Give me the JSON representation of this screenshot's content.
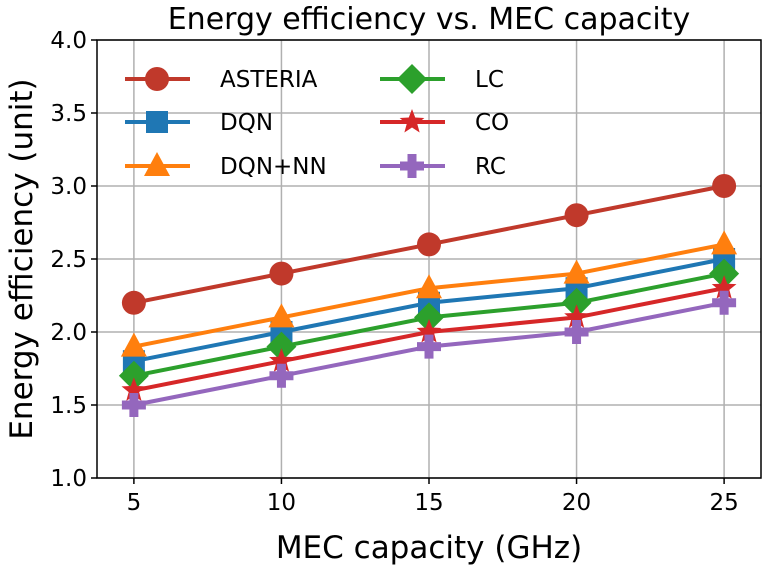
{
  "chart_data": {
    "type": "line",
    "title": "Energy efficiency vs. MEC capacity",
    "xlabel": "MEC capacity (GHz)",
    "ylabel": "Energy efficiency (unit)",
    "x": [
      5,
      10,
      15,
      20,
      25
    ],
    "xticks": [
      "5",
      "10",
      "15",
      "20",
      "25"
    ],
    "ylim": [
      1.0,
      4.0
    ],
    "yticks": [
      "1.0",
      "1.5",
      "2.0",
      "2.5",
      "3.0",
      "3.5",
      "4.0"
    ],
    "grid": true,
    "legend_position": "upper-left",
    "series": [
      {
        "name": "ASTERIA",
        "marker": "circle",
        "color": "#c0392b",
        "values": [
          2.2,
          2.4,
          2.6,
          2.8,
          3.0
        ]
      },
      {
        "name": "DQN",
        "marker": "square",
        "color": "#1f77b4",
        "values": [
          1.8,
          2.0,
          2.2,
          2.3,
          2.5
        ]
      },
      {
        "name": "DQN+NN",
        "marker": "triangle",
        "color": "#ff7f0e",
        "values": [
          1.9,
          2.1,
          2.3,
          2.4,
          2.6
        ]
      },
      {
        "name": "LC",
        "marker": "diamond",
        "color": "#2ca02c",
        "values": [
          1.7,
          1.9,
          2.1,
          2.2,
          2.4
        ]
      },
      {
        "name": "CO",
        "marker": "star",
        "color": "#d62728",
        "values": [
          1.6,
          1.8,
          2.0,
          2.1,
          2.3
        ]
      },
      {
        "name": "RC",
        "marker": "plus",
        "color": "#9467bd",
        "values": [
          1.5,
          1.7,
          1.9,
          2.0,
          2.2
        ]
      }
    ]
  }
}
